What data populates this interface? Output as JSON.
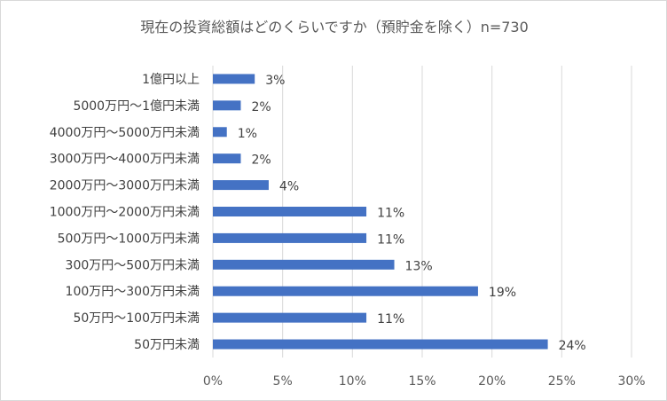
{
  "chart_data": {
    "type": "bar",
    "orientation": "horizontal",
    "title": "現在の投資総額はどのくらいですか（預貯金を除く）n=730",
    "categories": [
      "1億円以上",
      "5000万円～1億円未満",
      "4000万円～5000万円未満",
      "3000万円～4000万円未満",
      "2000万円～3000万円未満",
      "1000万円～2000万円未満",
      "500万円～1000万円未満",
      "300万円～500万円未満",
      "100万円～300万円未満",
      "50万円～100万円未満",
      "50万円未満"
    ],
    "values": [
      3,
      2,
      1,
      2,
      4,
      11,
      11,
      13,
      19,
      11,
      24
    ],
    "value_labels": [
      "3%",
      "2%",
      "1%",
      "2%",
      "4%",
      "11%",
      "11%",
      "13%",
      "19%",
      "11%",
      "24%"
    ],
    "xlim": [
      0,
      30
    ],
    "xticks": [
      0,
      5,
      10,
      15,
      20,
      25,
      30
    ],
    "xtick_labels": [
      "0%",
      "5%",
      "10%",
      "15%",
      "20%",
      "25%",
      "30%"
    ],
    "grid": "vertical",
    "legend": "none",
    "colors": {
      "bar": "#4472c4",
      "grid": "#d9d9d9",
      "text": "#595959"
    }
  }
}
